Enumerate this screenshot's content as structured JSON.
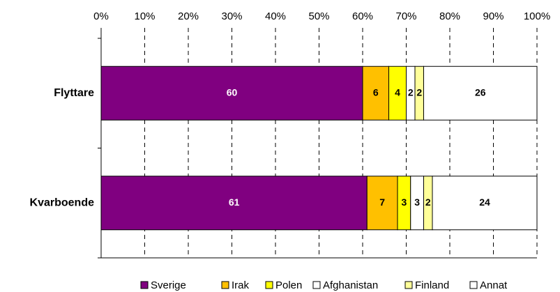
{
  "chart_data": {
    "type": "stacked-barh",
    "categories": [
      "Flyttare",
      "Kvarboende"
    ],
    "series": [
      {
        "name": "Sverige",
        "color": "#800080",
        "values": [
          60,
          61
        ]
      },
      {
        "name": "Irak",
        "color": "#ffc000",
        "values": [
          6,
          7
        ]
      },
      {
        "name": "Polen",
        "color": "#ffff00",
        "values": [
          4,
          3
        ]
      },
      {
        "name": "Afghanistan",
        "color": "#ffffff",
        "values": [
          2,
          3
        ]
      },
      {
        "name": "Finland",
        "color": "#ffff99",
        "values": [
          2,
          2
        ]
      },
      {
        "name": "Annat",
        "color": "#ffffff",
        "values": [
          26,
          24
        ]
      }
    ],
    "xlim": [
      0,
      100
    ],
    "xticks": [
      {
        "value": 0,
        "label": "0%"
      },
      {
        "value": 10,
        "label": "10%"
      },
      {
        "value": 20,
        "label": "20%"
      },
      {
        "value": 30,
        "label": "30%"
      },
      {
        "value": 40,
        "label": "40%"
      },
      {
        "value": 50,
        "label": "50%"
      },
      {
        "value": 60,
        "label": "60%"
      },
      {
        "value": 70,
        "label": "70%"
      },
      {
        "value": 80,
        "label": "80%"
      },
      {
        "value": 90,
        "label": "90%"
      },
      {
        "value": 100,
        "label": "100%"
      }
    ],
    "grid": true,
    "legend": "bottom"
  }
}
